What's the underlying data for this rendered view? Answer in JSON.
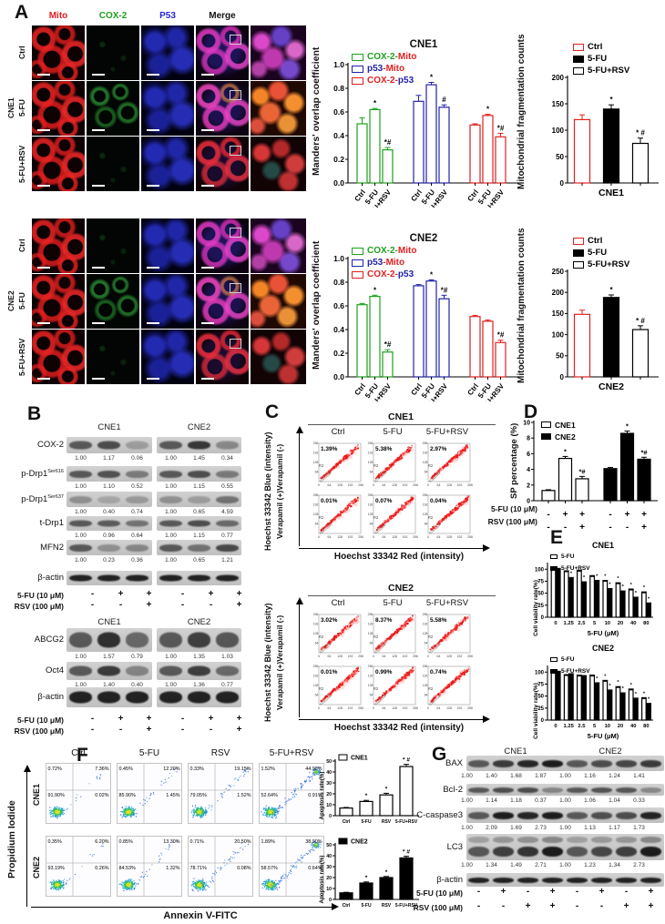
{
  "panelA": {
    "label": "A",
    "channel_headers": [
      {
        "text": "Mito",
        "color": "#e02020"
      },
      {
        "text": "COX-2",
        "color": "#1fa01f"
      },
      {
        "text": "P53",
        "color": "#2828d8"
      },
      {
        "text": "Merge",
        "color": "#111111"
      }
    ],
    "blocks": [
      {
        "cell_line": "CNE1",
        "row_labels": [
          "Ctrl",
          "5-FU",
          "5-FU+RSV"
        ]
      },
      {
        "cell_line": "CNE2",
        "row_labels": [
          "Ctrl",
          "5-FU",
          "5-FU+RSV"
        ]
      }
    ]
  },
  "chart_data": [
    {
      "id": "manders_cne1",
      "type": "bar",
      "title": "CNE1",
      "ylabel": "Manders' overlap coefficient",
      "ylim": [
        0,
        1.0
      ],
      "yticks": [
        0.0,
        0.2,
        0.4,
        0.6,
        0.8,
        1.0
      ],
      "categories": [
        "Ctrl",
        "5-FU",
        "5-FU+RSV"
      ],
      "series": [
        {
          "name": "COX-2-Mito",
          "color": "#1fa01f",
          "values": [
            0.5,
            0.62,
            0.28
          ],
          "errors": [
            0.05,
            0.01,
            0.02
          ],
          "annotations": [
            "",
            "*",
            "*#"
          ]
        },
        {
          "name": "p53-Mito",
          "color": "#2222aa",
          "values": [
            0.69,
            0.83,
            0.64
          ],
          "errors": [
            0.05,
            0.02,
            0.02
          ],
          "annotations": [
            "",
            "*",
            "#"
          ]
        },
        {
          "name": "COX-2-p53",
          "color": "#e02020",
          "values": [
            0.49,
            0.57,
            0.39
          ],
          "errors": [
            0.01,
            0.01,
            0.03
          ],
          "annotations": [
            "",
            "*",
            "*#"
          ]
        }
      ],
      "legend": [
        {
          "swatch": "#1fa01f",
          "parts": [
            {
              "text": "COX-2-",
              "color": "#1fa01f"
            },
            {
              "text": "Mito",
              "color": "#e02020"
            }
          ]
        },
        {
          "swatch": "#2222aa",
          "parts": [
            {
              "text": "p53",
              "color": "#2222aa"
            },
            {
              "text": "-Mito",
              "color": "#e02020"
            }
          ]
        },
        {
          "swatch": "#e02020",
          "parts": [
            {
              "text": "COX-2-",
              "color": "#e02020"
            },
            {
              "text": "p53",
              "color": "#2222aa"
            }
          ]
        }
      ]
    },
    {
      "id": "manders_cne2",
      "type": "bar",
      "title": "CNE2",
      "ylabel": "Manders' overlap coefficient",
      "ylim": [
        0,
        1.0
      ],
      "yticks": [
        0.0,
        0.2,
        0.4,
        0.6,
        0.8,
        1.0
      ],
      "categories": [
        "Ctrl",
        "5-FU",
        "5-FU+RSV"
      ],
      "series": [
        {
          "name": "COX-2-Mito",
          "color": "#1fa01f",
          "values": [
            0.61,
            0.68,
            0.21
          ],
          "errors": [
            0.01,
            0.01,
            0.02
          ],
          "annotations": [
            "",
            "*",
            "*#"
          ]
        },
        {
          "name": "p53-Mito",
          "color": "#2222aa",
          "values": [
            0.77,
            0.81,
            0.66
          ],
          "errors": [
            0.01,
            0.01,
            0.03
          ],
          "annotations": [
            "",
            "*",
            "*#"
          ]
        },
        {
          "name": "COX-2-p53",
          "color": "#e02020",
          "values": [
            0.51,
            0.47,
            0.29
          ],
          "errors": [
            0.01,
            0.01,
            0.02
          ],
          "annotations": [
            "",
            "",
            "*#"
          ]
        }
      ],
      "legend": [
        {
          "swatch": "#1fa01f",
          "parts": [
            {
              "text": "COX-2-",
              "color": "#1fa01f"
            },
            {
              "text": "Mito",
              "color": "#e02020"
            }
          ]
        },
        {
          "swatch": "#2222aa",
          "parts": [
            {
              "text": "p53",
              "color": "#2222aa"
            },
            {
              "text": "-Mito",
              "color": "#e02020"
            }
          ]
        },
        {
          "swatch": "#e02020",
          "parts": [
            {
              "text": "COX-2-",
              "color": "#e02020"
            },
            {
              "text": "p53",
              "color": "#2222aa"
            }
          ]
        }
      ]
    },
    {
      "id": "mitofrag_cne1",
      "type": "bar",
      "xlabel": "CNE1",
      "ylabel": "Mitochondrial fragmentation counts",
      "ylim": [
        0,
        200
      ],
      "yticks": [
        0,
        50,
        100,
        150,
        200
      ],
      "categories": [
        "Ctrl",
        "5-FU",
        "5-FU+RSV"
      ],
      "values": [
        120,
        140,
        75
      ],
      "errors": [
        9,
        8,
        10
      ],
      "annotations": [
        "",
        "*",
        "* #"
      ],
      "bar_styles": [
        {
          "fill": "#ffffff",
          "stroke": "#e02020"
        },
        {
          "fill": "#000000",
          "stroke": "#000000"
        },
        {
          "fill": "#ffffff",
          "stroke": "#000000"
        }
      ]
    },
    {
      "id": "mitofrag_cne2",
      "type": "bar",
      "xlabel": "CNE2",
      "ylabel": "Mitochondrial fragmentation counts",
      "ylim": [
        0,
        250
      ],
      "yticks": [
        0,
        50,
        100,
        150,
        200,
        250
      ],
      "categories": [
        "Ctrl",
        "5-FU",
        "5-FU+RSV"
      ],
      "values": [
        148,
        188,
        112
      ],
      "errors": [
        10,
        6,
        9
      ],
      "annotations": [
        "",
        "*",
        "* #"
      ],
      "bar_styles": [
        {
          "fill": "#ffffff",
          "stroke": "#e02020"
        },
        {
          "fill": "#000000",
          "stroke": "#000000"
        },
        {
          "fill": "#ffffff",
          "stroke": "#000000"
        }
      ]
    },
    {
      "id": "sp_percentage",
      "type": "bar",
      "ylabel": "SP percentage (%)",
      "ylim": [
        0,
        10
      ],
      "yticks": [
        0,
        2,
        4,
        6,
        8,
        10
      ],
      "series": [
        {
          "name": "CNE1",
          "fill": "#ffffff",
          "values": [
            1.3,
            5.4,
            2.8
          ],
          "errors": [
            0.1,
            0.25,
            0.3
          ],
          "annotations": [
            "",
            "*",
            "*#"
          ]
        },
        {
          "name": "CNE2",
          "fill": "#000000",
          "values": [
            4.1,
            8.6,
            5.3
          ],
          "errors": [
            0.15,
            0.3,
            0.25
          ],
          "annotations": [
            "",
            "*",
            "*#"
          ]
        }
      ],
      "conditions": [
        {
          "label": "5-FU (10 μM)",
          "signs": [
            "-",
            "+",
            "+",
            "-",
            "+",
            "+"
          ]
        },
        {
          "label": "RSV (100 μM)",
          "signs": [
            "-",
            "-",
            "+",
            "-",
            "-",
            "+"
          ]
        }
      ]
    },
    {
      "id": "viability_cne1",
      "type": "bar",
      "title": "CNE1",
      "ylabel": "Cell viability rate(%)",
      "xlabel": "5-FU (μM)",
      "ylim": [
        0,
        110
      ],
      "yticks": [
        0,
        25,
        50,
        75,
        100
      ],
      "categories": [
        "0",
        "1.25",
        "2.5",
        "5",
        "10",
        "20",
        "40",
        "80"
      ],
      "series": [
        {
          "name": "5-FU",
          "fill": "#ffffff",
          "values": [
            100,
            95,
            96,
            85,
            75,
            70,
            57,
            51
          ],
          "annotations": [
            "",
            "",
            "",
            "",
            "*",
            "*",
            "*",
            "*"
          ]
        },
        {
          "name": "5-FU+RSV",
          "fill": "#000000",
          "values": [
            100,
            81,
            72,
            75,
            58,
            53,
            40,
            28
          ],
          "annotations": [
            "",
            "*",
            "*",
            "*",
            "*",
            "*",
            "*",
            "*"
          ]
        }
      ]
    },
    {
      "id": "viability_cne2",
      "type": "bar",
      "title": "CNE2",
      "ylabel": "Cell viability rate(%)",
      "xlabel": "5-FU (μM)",
      "ylim": [
        0,
        110
      ],
      "yticks": [
        0,
        25,
        50,
        75,
        100
      ],
      "categories": [
        "0",
        "1.25",
        "2.5",
        "5",
        "10",
        "20",
        "40",
        "80"
      ],
      "series": [
        {
          "name": "5-FU",
          "fill": "#ffffff",
          "values": [
            100,
            93,
            92,
            92,
            81,
            68,
            63,
            45
          ],
          "annotations": [
            "",
            "",
            "",
            "",
            "*",
            "*",
            "*",
            "*"
          ]
        },
        {
          "name": "5-FU+RSV",
          "fill": "#000000",
          "values": [
            100,
            95,
            91,
            76,
            61,
            55,
            44,
            33
          ],
          "annotations": [
            "",
            "",
            "",
            "*",
            "*",
            "*",
            "*",
            "*"
          ]
        }
      ]
    },
    {
      "id": "apoptosis_cne1",
      "type": "bar",
      "legend": "CNE1",
      "fill": "#ffffff",
      "ylabel": "Apoptosis rate(%)",
      "ylim": [
        0,
        50
      ],
      "yticks": [
        0,
        10,
        20,
        30,
        40,
        50
      ],
      "categories": [
        "Ctrl",
        "5-FU",
        "RSV",
        "5-FU+RSV"
      ],
      "values": [
        7,
        13,
        19,
        45
      ],
      "errors": [
        0.5,
        1,
        1.5,
        2
      ],
      "annotations": [
        "",
        "*",
        "*",
        "* #"
      ]
    },
    {
      "id": "apoptosis_cne2",
      "type": "bar",
      "legend": "CNE2",
      "fill": "#000000",
      "ylabel": "Apoptosis rate(%)",
      "ylim": [
        0,
        50
      ],
      "yticks": [
        0,
        10,
        20,
        30,
        40,
        50
      ],
      "categories": [
        "Ctrl",
        "5-FU",
        "RSV",
        "5-FU+RSV"
      ],
      "values": [
        6,
        15,
        20,
        38
      ],
      "errors": [
        0.5,
        1,
        1,
        1.5
      ],
      "annotations": [
        "",
        "*",
        "*",
        "* #"
      ]
    }
  ],
  "panelB": {
    "label": "B",
    "top": {
      "groups": [
        "CNE1",
        "CNE2"
      ],
      "rows": [
        {
          "protein": "COX-2",
          "sup": "",
          "values": [
            [
              "1.00",
              "1.17",
              "0.06"
            ],
            [
              "1.00",
              "1.45",
              "0.34"
            ]
          ]
        },
        {
          "protein": "p-Drp1",
          "sup": "Ser616",
          "values": [
            [
              "1.00",
              "1.10",
              "0.52"
            ],
            [
              "1.00",
              "1.15",
              "0.55"
            ]
          ]
        },
        {
          "protein": "p-Drp1",
          "sup": "Ser637",
          "values": [
            [
              "1.00",
              "0.40",
              "0.74"
            ],
            [
              "1.00",
              "0.65",
              "4.59"
            ]
          ]
        },
        {
          "protein": "t-Drp1",
          "sup": "",
          "values": [
            [
              "1.00",
              "0.96",
              "0.64"
            ],
            [
              "1.00",
              "1.15",
              "0.77"
            ]
          ]
        },
        {
          "protein": "MFN2",
          "sup": "",
          "values": [
            [
              "1.00",
              "0.23",
              "0.36"
            ],
            [
              "1.00",
              "0.65",
              "1.21"
            ]
          ]
        },
        {
          "protein": "β-actin",
          "sup": "",
          "values": null
        }
      ],
      "conditions": [
        {
          "label": "5-FU (10 μM)",
          "signs": [
            "-",
            "+",
            "+",
            "-",
            "+",
            "+"
          ]
        },
        {
          "label": "RSV (100 μM)",
          "signs": [
            "-",
            "-",
            "+",
            "-",
            "-",
            "+"
          ]
        }
      ]
    },
    "bottom": {
      "groups": [
        "CNE1",
        "CNE2"
      ],
      "rows": [
        {
          "protein": "ABCG2",
          "sup": "",
          "values": [
            [
              "1.00",
              "1.57",
              "0.79"
            ],
            [
              "1.00",
              "1.35",
              "1.03"
            ]
          ]
        },
        {
          "protein": "Oct4",
          "sup": "",
          "values": [
            [
              "1.00",
              "1.40",
              "0.40"
            ],
            [
              "1.00",
              "1.36",
              "0.77"
            ]
          ]
        },
        {
          "protein": "β-actin",
          "sup": "",
          "values": null
        }
      ],
      "conditions": [
        {
          "label": "5-FU (10 μM)",
          "signs": [
            "-",
            "+",
            "+",
            "-",
            "+",
            "+"
          ]
        },
        {
          "label": "RSV (100 μM)",
          "signs": [
            "-",
            "-",
            "+",
            "-",
            "-",
            "+"
          ]
        }
      ]
    }
  },
  "panelC": {
    "label": "C",
    "ylabel_outer": "Hoechst 33342 Blue (intensity)",
    "ylabel_inner": "Verapamil (+)Verapamil (-)",
    "xlabel": "Hoechst 33342 Red (intensity)",
    "axis_ticks": [
      "0",
      "64",
      "128",
      "192",
      "256"
    ],
    "gate_label": "R2",
    "blocks": [
      {
        "cell_line": "CNE1",
        "columns": [
          "Ctrl",
          "5-FU",
          "5-FU+RSV"
        ],
        "percentages": [
          [
            "1.39%",
            "5.38%",
            "2.97%"
          ],
          [
            "0.01%",
            "0.07%",
            "0.04%"
          ]
        ]
      },
      {
        "cell_line": "CNE2",
        "columns": [
          "Ctrl",
          "5-FU",
          "5-FU+RSV"
        ],
        "percentages": [
          [
            "3.02%",
            "8.37%",
            "5.58%"
          ],
          [
            "0.01%",
            "0.99%",
            "0.74%"
          ]
        ]
      }
    ]
  },
  "panelD": {
    "label": "D"
  },
  "panelE": {
    "label": "E"
  },
  "panelF": {
    "label": "F",
    "ylabel": "Propidium Iodide",
    "xlabel": "Annexin V-FITC",
    "columns": [
      "Ctrl",
      "5-FU",
      "RSV",
      "5-FU+RSV"
    ],
    "rows": [
      "CNE1",
      "CNE2"
    ],
    "quadrants": [
      [
        [
          "0.72%",
          "7.36%",
          "91.90%",
          "0.02%"
        ],
        [
          "0.45%",
          "12.20%",
          "85.90%",
          "1.45%"
        ],
        [
          "0.33%",
          "19.15%",
          "79.05%",
          "1.52%"
        ],
        [
          "1.52%",
          "44.93%",
          "52.64%",
          "0.91%"
        ]
      ],
      [
        [
          "0.35%",
          "6.20%",
          "93.19%",
          "0.26%"
        ],
        [
          "0.85%",
          "13.30%",
          "84.53%",
          "1.32%"
        ],
        [
          "0.71%",
          "20.50%",
          "78.71%",
          "0.08%"
        ],
        [
          "1.89%",
          "38.90%",
          "58.57%",
          "0.64%"
        ]
      ]
    ]
  },
  "panelG": {
    "label": "G",
    "groups": [
      "CNE1",
      "CNE2"
    ],
    "rows": [
      {
        "protein": "BAX",
        "values": [
          "1.00",
          "1.40",
          "1.68",
          "1.87",
          "1.00",
          "1.16",
          "1.24",
          "1.41"
        ]
      },
      {
        "protein": "Bcl-2",
        "values": [
          "1.00",
          "1.14",
          "1.18",
          "0.37",
          "1.00",
          "1.06",
          "1.04",
          "0.33"
        ]
      },
      {
        "protein": "C-caspase3",
        "values": [
          "1.00",
          "2.09",
          "1.69",
          "2.73",
          "1.00",
          "1.13",
          "1.17",
          "1.73"
        ]
      },
      {
        "protein": "LC3",
        "values": [
          "1.00",
          "1.34",
          "1.49",
          "2.71",
          "1.00",
          "1.23",
          "1.34",
          "2.73"
        ]
      },
      {
        "protein": "β-actin",
        "values": null
      }
    ],
    "conditions": [
      {
        "label": "5-FU (10 μM)",
        "signs": [
          "-",
          "+",
          "-",
          "+",
          "-",
          "+",
          "-",
          "+"
        ]
      },
      {
        "label": "RSV (100 μM)",
        "signs": [
          "-",
          "-",
          "+",
          "+",
          "-",
          "-",
          "+",
          "+"
        ]
      }
    ]
  }
}
